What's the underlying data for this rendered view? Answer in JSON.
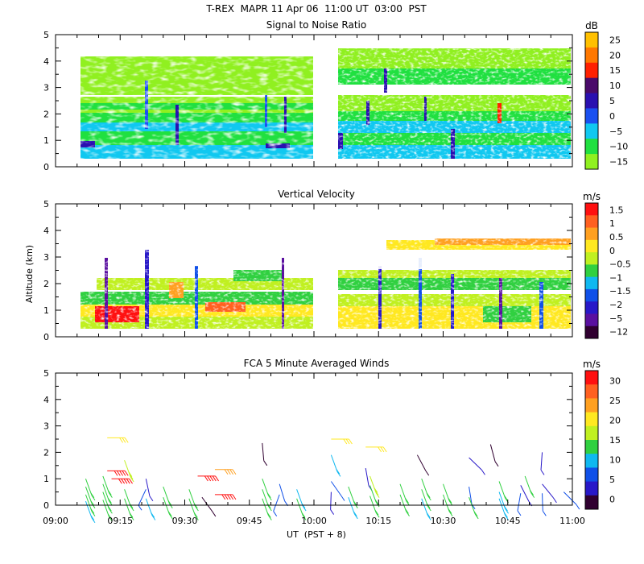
{
  "header": {
    "title": "T-REX  MAPR 11 Apr 06  11:00 UT  03:00  PST"
  },
  "chart_data": [
    {
      "type": "heatmap",
      "title": "Signal to Noise Ratio",
      "xlabel": "",
      "ylabel": "",
      "x_range_minutes_from_0900": [
        0,
        120
      ],
      "ylim": [
        0,
        5
      ],
      "yticks": [
        "0",
        "1",
        "2",
        "3",
        "4",
        "5"
      ],
      "colorbar": {
        "unit": "dB",
        "labels": [
          "25",
          "20",
          "15",
          "10",
          "5",
          "0",
          "−5",
          "−10",
          "−15"
        ],
        "colors": [
          "#ffc000",
          "#ff7800",
          "#ff2000",
          "#4a0a6a",
          "#2a10b0",
          "#1a50f0",
          "#10c8f0",
          "#20e040",
          "#90f020"
        ]
      },
      "data_gap_minutes": [
        55,
        61
      ]
    },
    {
      "type": "heatmap",
      "title": "Vertical Velocity",
      "ylabel": "Altitude (km)",
      "x_range_minutes_from_0900": [
        0,
        120
      ],
      "ylim": [
        0,
        5
      ],
      "yticks": [
        "0",
        "1",
        "2",
        "3",
        "4",
        "5"
      ],
      "colorbar": {
        "unit": "m/s",
        "labels": [
          "1.5",
          "1",
          "0.5",
          "0",
          "−0.5",
          "−1",
          "−1.5",
          "−2",
          "−5",
          "−12"
        ],
        "colors": [
          "#ff1010",
          "#ff6020",
          "#ffa020",
          "#ffe820",
          "#c0f020",
          "#30d040",
          "#10b8f0",
          "#1050e8",
          "#2818c8",
          "#5a10a0",
          "#300030"
        ]
      },
      "data_gap_minutes": [
        55,
        61
      ]
    },
    {
      "type": "scatter",
      "title": "FCA 5 Minute Averaged Winds",
      "xlabel": "UT  (PST + 8)",
      "x_range_minutes_from_0900": [
        0,
        120
      ],
      "xticks": [
        "09:00",
        "09:15",
        "09:30",
        "09:45",
        "10:00",
        "10:15",
        "10:30",
        "10:45",
        "11:00"
      ],
      "ylim": [
        0,
        5
      ],
      "yticks": [
        "0",
        "1",
        "2",
        "3",
        "4",
        "5"
      ],
      "colorbar": {
        "unit": "m/s",
        "labels": [
          "30",
          "25",
          "20",
          "15",
          "10",
          "5",
          "0"
        ],
        "colors": [
          "#ff1010",
          "#ff6020",
          "#ffa020",
          "#ffe820",
          "#c0f020",
          "#30d040",
          "#10b8f0",
          "#1050e8",
          "#2818c8",
          "#300030"
        ]
      },
      "barbs": [
        {
          "t": 7,
          "alt": 1.0,
          "speed": 12
        },
        {
          "t": 7,
          "alt": 0.7,
          "speed": 13
        },
        {
          "t": 7,
          "alt": 0.4,
          "speed": 12
        },
        {
          "t": 7,
          "alt": 0.15,
          "speed": 11
        },
        {
          "t": 11,
          "alt": 1.1,
          "speed": 14
        },
        {
          "t": 11,
          "alt": 0.8,
          "speed": 13
        },
        {
          "t": 11,
          "alt": 0.5,
          "speed": 12
        },
        {
          "t": 11,
          "alt": 0.2,
          "speed": 12
        },
        {
          "t": 12,
          "alt": 2.55,
          "speed": 20
        },
        {
          "t": 12,
          "alt": 1.3,
          "speed": 28
        },
        {
          "t": 13,
          "alt": 1.0,
          "speed": 27
        },
        {
          "t": 16,
          "alt": 1.7,
          "speed": 15
        },
        {
          "t": 16,
          "alt": 0.6,
          "speed": 13
        },
        {
          "t": 16,
          "alt": 0.25,
          "speed": 12
        },
        {
          "t": 21,
          "alt": 1.0,
          "speed": 4
        },
        {
          "t": 21,
          "alt": 0.6,
          "speed": 6
        },
        {
          "t": 21,
          "alt": 0.25,
          "speed": 10
        },
        {
          "t": 25,
          "alt": 0.7,
          "speed": 14
        },
        {
          "t": 25,
          "alt": 0.3,
          "speed": 13
        },
        {
          "t": 31,
          "alt": 0.6,
          "speed": 12
        },
        {
          "t": 31,
          "alt": 0.25,
          "speed": 12
        },
        {
          "t": 33,
          "alt": 1.1,
          "speed": 27
        },
        {
          "t": 34,
          "alt": 0.3,
          "speed": 2
        },
        {
          "t": 37,
          "alt": 1.35,
          "speed": 21
        },
        {
          "t": 37,
          "alt": 0.4,
          "speed": 28
        },
        {
          "t": 48,
          "alt": 2.35,
          "speed": 1
        },
        {
          "t": 48,
          "alt": 1.0,
          "speed": 12
        },
        {
          "t": 48,
          "alt": 0.6,
          "speed": 13
        },
        {
          "t": 48,
          "alt": 0.25,
          "speed": 12
        },
        {
          "t": 52,
          "alt": 0.8,
          "speed": 7
        },
        {
          "t": 52,
          "alt": 0.4,
          "speed": 8
        },
        {
          "t": 56,
          "alt": 0.6,
          "speed": 11
        },
        {
          "t": 56,
          "alt": 0.25,
          "speed": 12
        },
        {
          "t": 64,
          "alt": 2.5,
          "speed": 20
        },
        {
          "t": 64,
          "alt": 1.9,
          "speed": 10
        },
        {
          "t": 64,
          "alt": 0.9,
          "speed": 6
        },
        {
          "t": 64,
          "alt": 0.5,
          "speed": 4
        },
        {
          "t": 68,
          "alt": 0.7,
          "speed": 12
        },
        {
          "t": 68,
          "alt": 0.3,
          "speed": 11
        },
        {
          "t": 72,
          "alt": 2.2,
          "speed": 20
        },
        {
          "t": 72,
          "alt": 1.4,
          "speed": 3
        },
        {
          "t": 73,
          "alt": 1.1,
          "speed": 15
        },
        {
          "t": 73,
          "alt": 0.75,
          "speed": 13
        },
        {
          "t": 73,
          "alt": 0.35,
          "speed": 12
        },
        {
          "t": 80,
          "alt": 0.8,
          "speed": 13
        },
        {
          "t": 80,
          "alt": 0.4,
          "speed": 12
        },
        {
          "t": 84,
          "alt": 1.9,
          "speed": 2
        },
        {
          "t": 85,
          "alt": 1.0,
          "speed": 14
        },
        {
          "t": 85,
          "alt": 0.6,
          "speed": 13
        },
        {
          "t": 85,
          "alt": 0.25,
          "speed": 11
        },
        {
          "t": 90,
          "alt": 0.8,
          "speed": 12
        },
        {
          "t": 90,
          "alt": 0.4,
          "speed": 12
        },
        {
          "t": 96,
          "alt": 1.8,
          "speed": 3
        },
        {
          "t": 96,
          "alt": 0.7,
          "speed": 6
        },
        {
          "t": 96,
          "alt": 0.3,
          "speed": 14
        },
        {
          "t": 101,
          "alt": 2.3,
          "speed": 1
        },
        {
          "t": 103,
          "alt": 0.9,
          "speed": 14
        },
        {
          "t": 103,
          "alt": 0.5,
          "speed": 10
        },
        {
          "t": 103,
          "alt": 0.25,
          "speed": 11
        },
        {
          "t": 108,
          "alt": 0.75,
          "speed": 5
        },
        {
          "t": 108,
          "alt": 0.45,
          "speed": 8
        },
        {
          "t": 109,
          "alt": 1.1,
          "speed": 13
        },
        {
          "t": 113,
          "alt": 2.0,
          "speed": 3
        },
        {
          "t": 113,
          "alt": 0.8,
          "speed": 4
        },
        {
          "t": 113,
          "alt": 0.45,
          "speed": 6
        },
        {
          "t": 118,
          "alt": 0.5,
          "speed": 6
        }
      ]
    }
  ]
}
